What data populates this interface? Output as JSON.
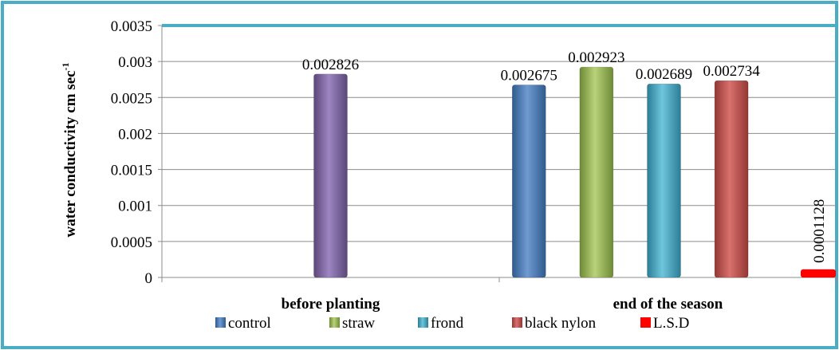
{
  "chart_data": {
    "type": "bar",
    "title": "",
    "xlabel": "",
    "ylabel": "water conductivity cm sec",
    "ylabel_superscript": "-1",
    "ylim": [
      0,
      0.0035
    ],
    "yticks": [
      "0",
      "0.0005",
      "0.001",
      "0.0015",
      "0.002",
      "0.0025",
      "0.003",
      "0.0035"
    ],
    "grid": true,
    "legend_position": "bottom",
    "categories": [
      "before planting",
      "end of the season"
    ],
    "series": [
      {
        "name": "control",
        "color": "#4F81BD",
        "values": [
          null,
          0.002675
        ],
        "labels": [
          "",
          "0.002675"
        ]
      },
      {
        "name": "straw",
        "color": "#9BBB59",
        "values": [
          null,
          0.002923
        ],
        "labels": [
          "",
          "0.002923"
        ]
      },
      {
        "name": "frond",
        "color": "#4BACC6",
        "values": [
          null,
          0.002689
        ],
        "labels": [
          "",
          "0.002689"
        ]
      },
      {
        "name": "black nylon",
        "color": "#C0504D",
        "values": [
          null,
          0.002734
        ],
        "labels": [
          "",
          "0.002734"
        ]
      },
      {
        "name": "L.S.D",
        "color": "#FF0000",
        "values": [
          null,
          0.0001128
        ],
        "labels": [
          "",
          "0.0001128"
        ]
      }
    ],
    "extra_bars": [
      {
        "category": "before planting",
        "color": "#8064A2",
        "value": 0.002826,
        "label": "0.002826"
      }
    ]
  }
}
